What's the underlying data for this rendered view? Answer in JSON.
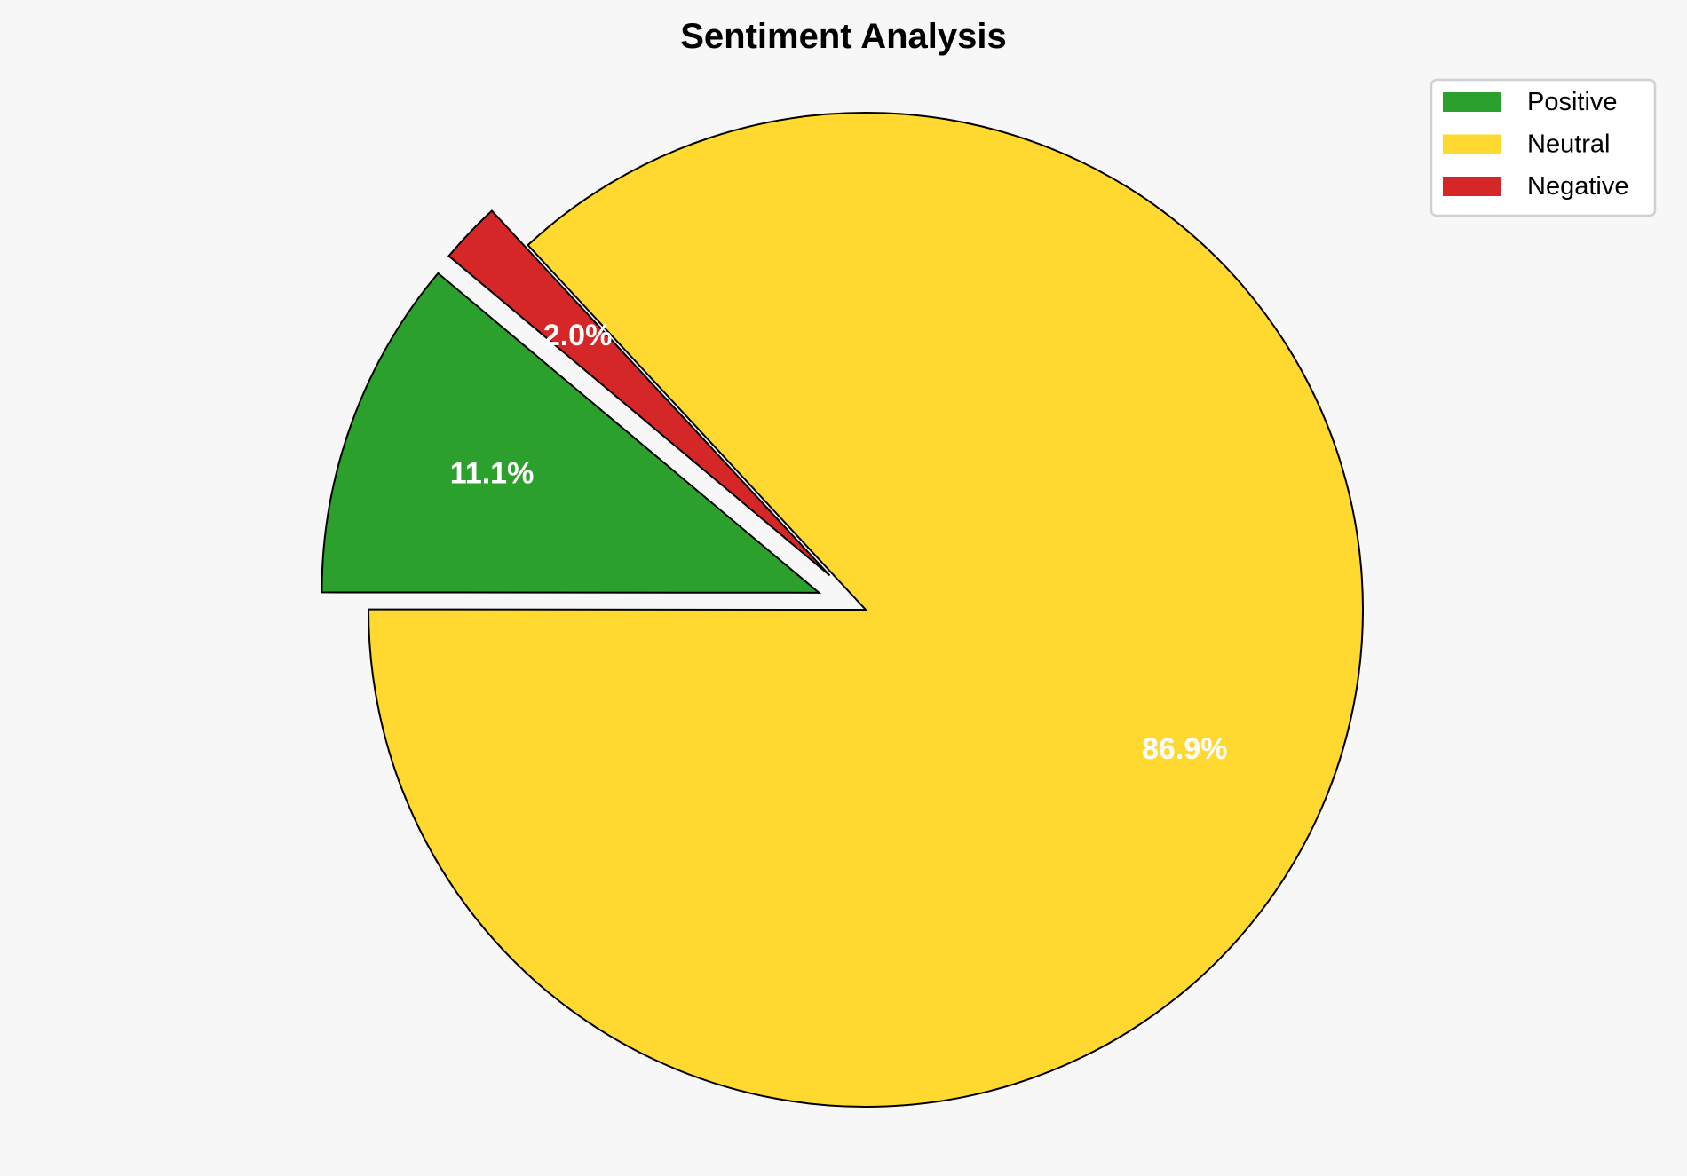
{
  "chart_data": {
    "type": "pie",
    "title": "Sentiment Analysis",
    "categories": [
      "Positive",
      "Neutral",
      "Negative"
    ],
    "values": [
      11.1,
      86.9,
      2.0
    ],
    "labels": [
      "11.1%",
      "86.9%",
      "2.0%"
    ],
    "colors": [
      "#2ca02c",
      "#ffd92f",
      "#d62728"
    ],
    "exploded": [
      true,
      false,
      true
    ],
    "start_angle": 140,
    "legend_placement": "top-right",
    "background": "#f7f7f7"
  }
}
